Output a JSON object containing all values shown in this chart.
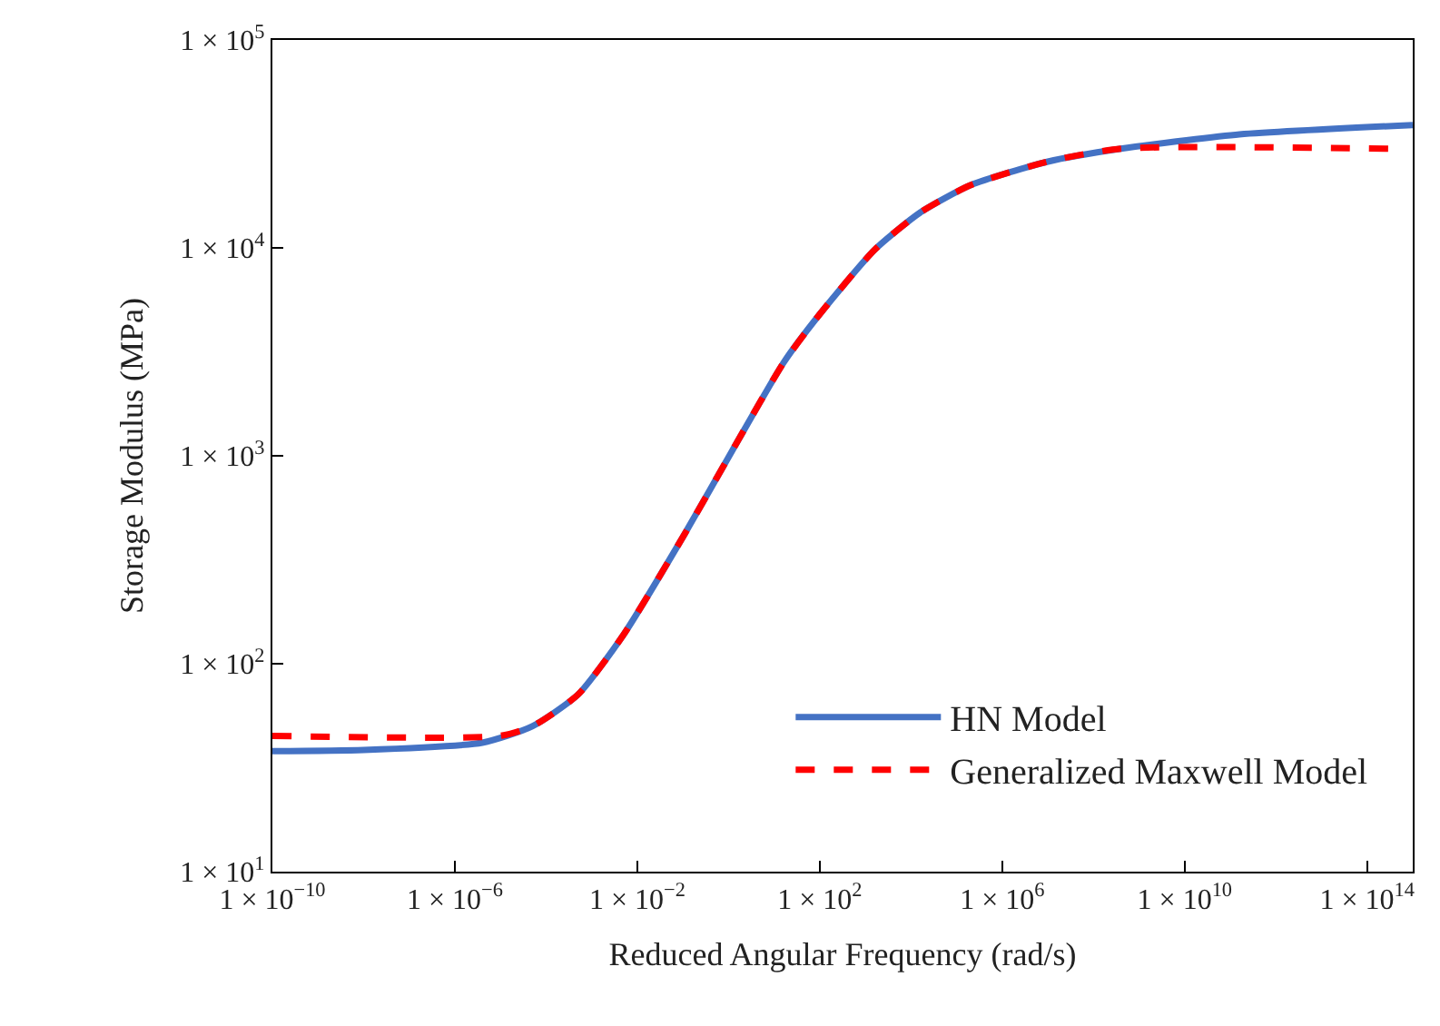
{
  "chart_data": {
    "type": "line",
    "xlabel": "Reduced Angular Frequency (rad/s)",
    "ylabel": "Storage Modulus (MPa)",
    "log": "xy",
    "legend": "bottom right",
    "marker": "none",
    "xlim": [
      1e-10,
      1000000000000000.0
    ],
    "ylim": [
      10,
      100000
    ],
    "xticks": [
      {
        "value": 1e-10,
        "label": "1 × 10$^{−10}$"
      },
      {
        "value": 1e-06,
        "label": "1 × 10$^{−6}$"
      },
      {
        "value": 0.01,
        "label": "1 × 10$^{−2}$"
      },
      {
        "value": 100,
        "label": "1 × 10$^{2}$"
      },
      {
        "value": 1000000.0,
        "label": "1 × 10$^{6}$"
      },
      {
        "value": 10000000000.0,
        "label": "1 × 10$^{10}$"
      },
      {
        "value": 100000000000000.0,
        "label": "1 × 10$^{14}$"
      }
    ],
    "yticks": [
      {
        "value": 10,
        "label": "1 × 10$^{1}$"
      },
      {
        "value": 100,
        "label": "1 × 10$^{2}$"
      },
      {
        "value": 1000,
        "label": "1 × 10$^{3}$"
      },
      {
        "value": 10000,
        "label": "1 × 10$^{4}$"
      },
      {
        "value": 100000,
        "label": "1 × 10$^{5}$"
      }
    ],
    "series": [
      {
        "name": "HN Model",
        "color": "#4472c4",
        "line_style": "solid",
        "x": [
          1e-10,
          1e-08,
          4e-06,
          5e-05,
          0.0005,
          0.005,
          0.1,
          1.6,
          16,
          100,
          1600,
          16000,
          200000.0,
          10000000.0,
          400000000.0,
          130000000000.0,
          1000000000000000.0
        ],
        "values": [
          38,
          38.5,
          41.7,
          50,
          71,
          138,
          407,
          1180,
          2800,
          4800,
          9800,
          14800,
          20000,
          26000,
          30000,
          35000,
          39000
        ]
      },
      {
        "name": "Generalized Maxwell Model",
        "color": "#ff0000",
        "line_style": "dashed",
        "x": [
          1e-10,
          1e-05,
          5e-05,
          0.0005,
          0.005,
          0.1,
          1.6,
          16,
          100,
          1600,
          16000,
          200000.0,
          10000000.0,
          400000000.0,
          300000000000000.0
        ],
        "values": [
          45,
          45,
          50,
          71,
          138,
          407,
          1180,
          2800,
          4800,
          9800,
          14800,
          20000,
          26000,
          30000,
          30000
        ]
      }
    ]
  }
}
